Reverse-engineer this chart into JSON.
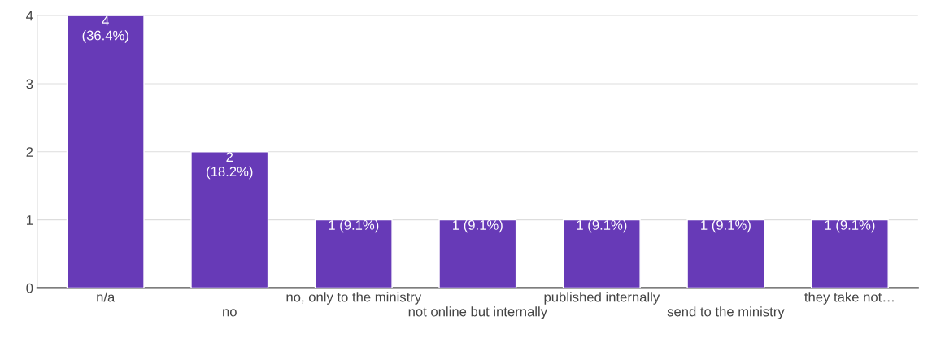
{
  "chart_data": {
    "type": "bar",
    "categories": [
      "n/a",
      "no",
      "no, only to the ministry",
      "not online but internally",
      "published internally",
      "send to the ministry",
      "they take not…"
    ],
    "values": [
      4,
      2,
      1,
      1,
      1,
      1,
      1
    ],
    "value_labels": [
      "4\n(36.4%)",
      "2\n(18.2%)",
      "1 (9.1%)",
      "1 (9.1%)",
      "1 (9.1%)",
      "1 (9.1%)",
      "1 (9.1%)"
    ],
    "color": "#673ab7",
    "ylim": [
      0,
      4
    ],
    "yticks": [
      0,
      1,
      2,
      3,
      4
    ],
    "grid": "y",
    "legend": false
  }
}
